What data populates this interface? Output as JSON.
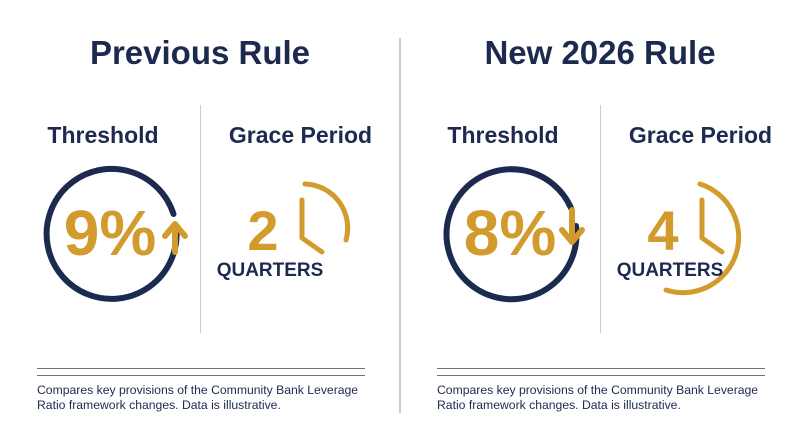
{
  "colors": {
    "navy": "#1b2a4e",
    "gold": "#d39b2c",
    "divider": "#c9cdd2"
  },
  "panels": [
    {
      "title": "Previous Rule",
      "threshold": {
        "label": "Threshold",
        "value": "9%",
        "direction_icon": "arrow-up-icon"
      },
      "grace_period": {
        "label": "Grace Period",
        "value": "2",
        "unit": "QUARTERS",
        "icon": "clock-icon"
      },
      "caption": "Compares key provisions of the Community Bank Leverage Ratio framework changes. Data is illustrative."
    },
    {
      "title": "New 2026 Rule",
      "threshold": {
        "label": "Threshold",
        "value": "8%",
        "direction_icon": "arrow-down-icon"
      },
      "grace_period": {
        "label": "Grace Period",
        "value": "4",
        "unit": "QUARTERS",
        "icon": "clock-icon"
      },
      "caption": "Compares key provisions of the Community Bank Leverage Ratio framework changes. Data is illustrative."
    }
  ]
}
